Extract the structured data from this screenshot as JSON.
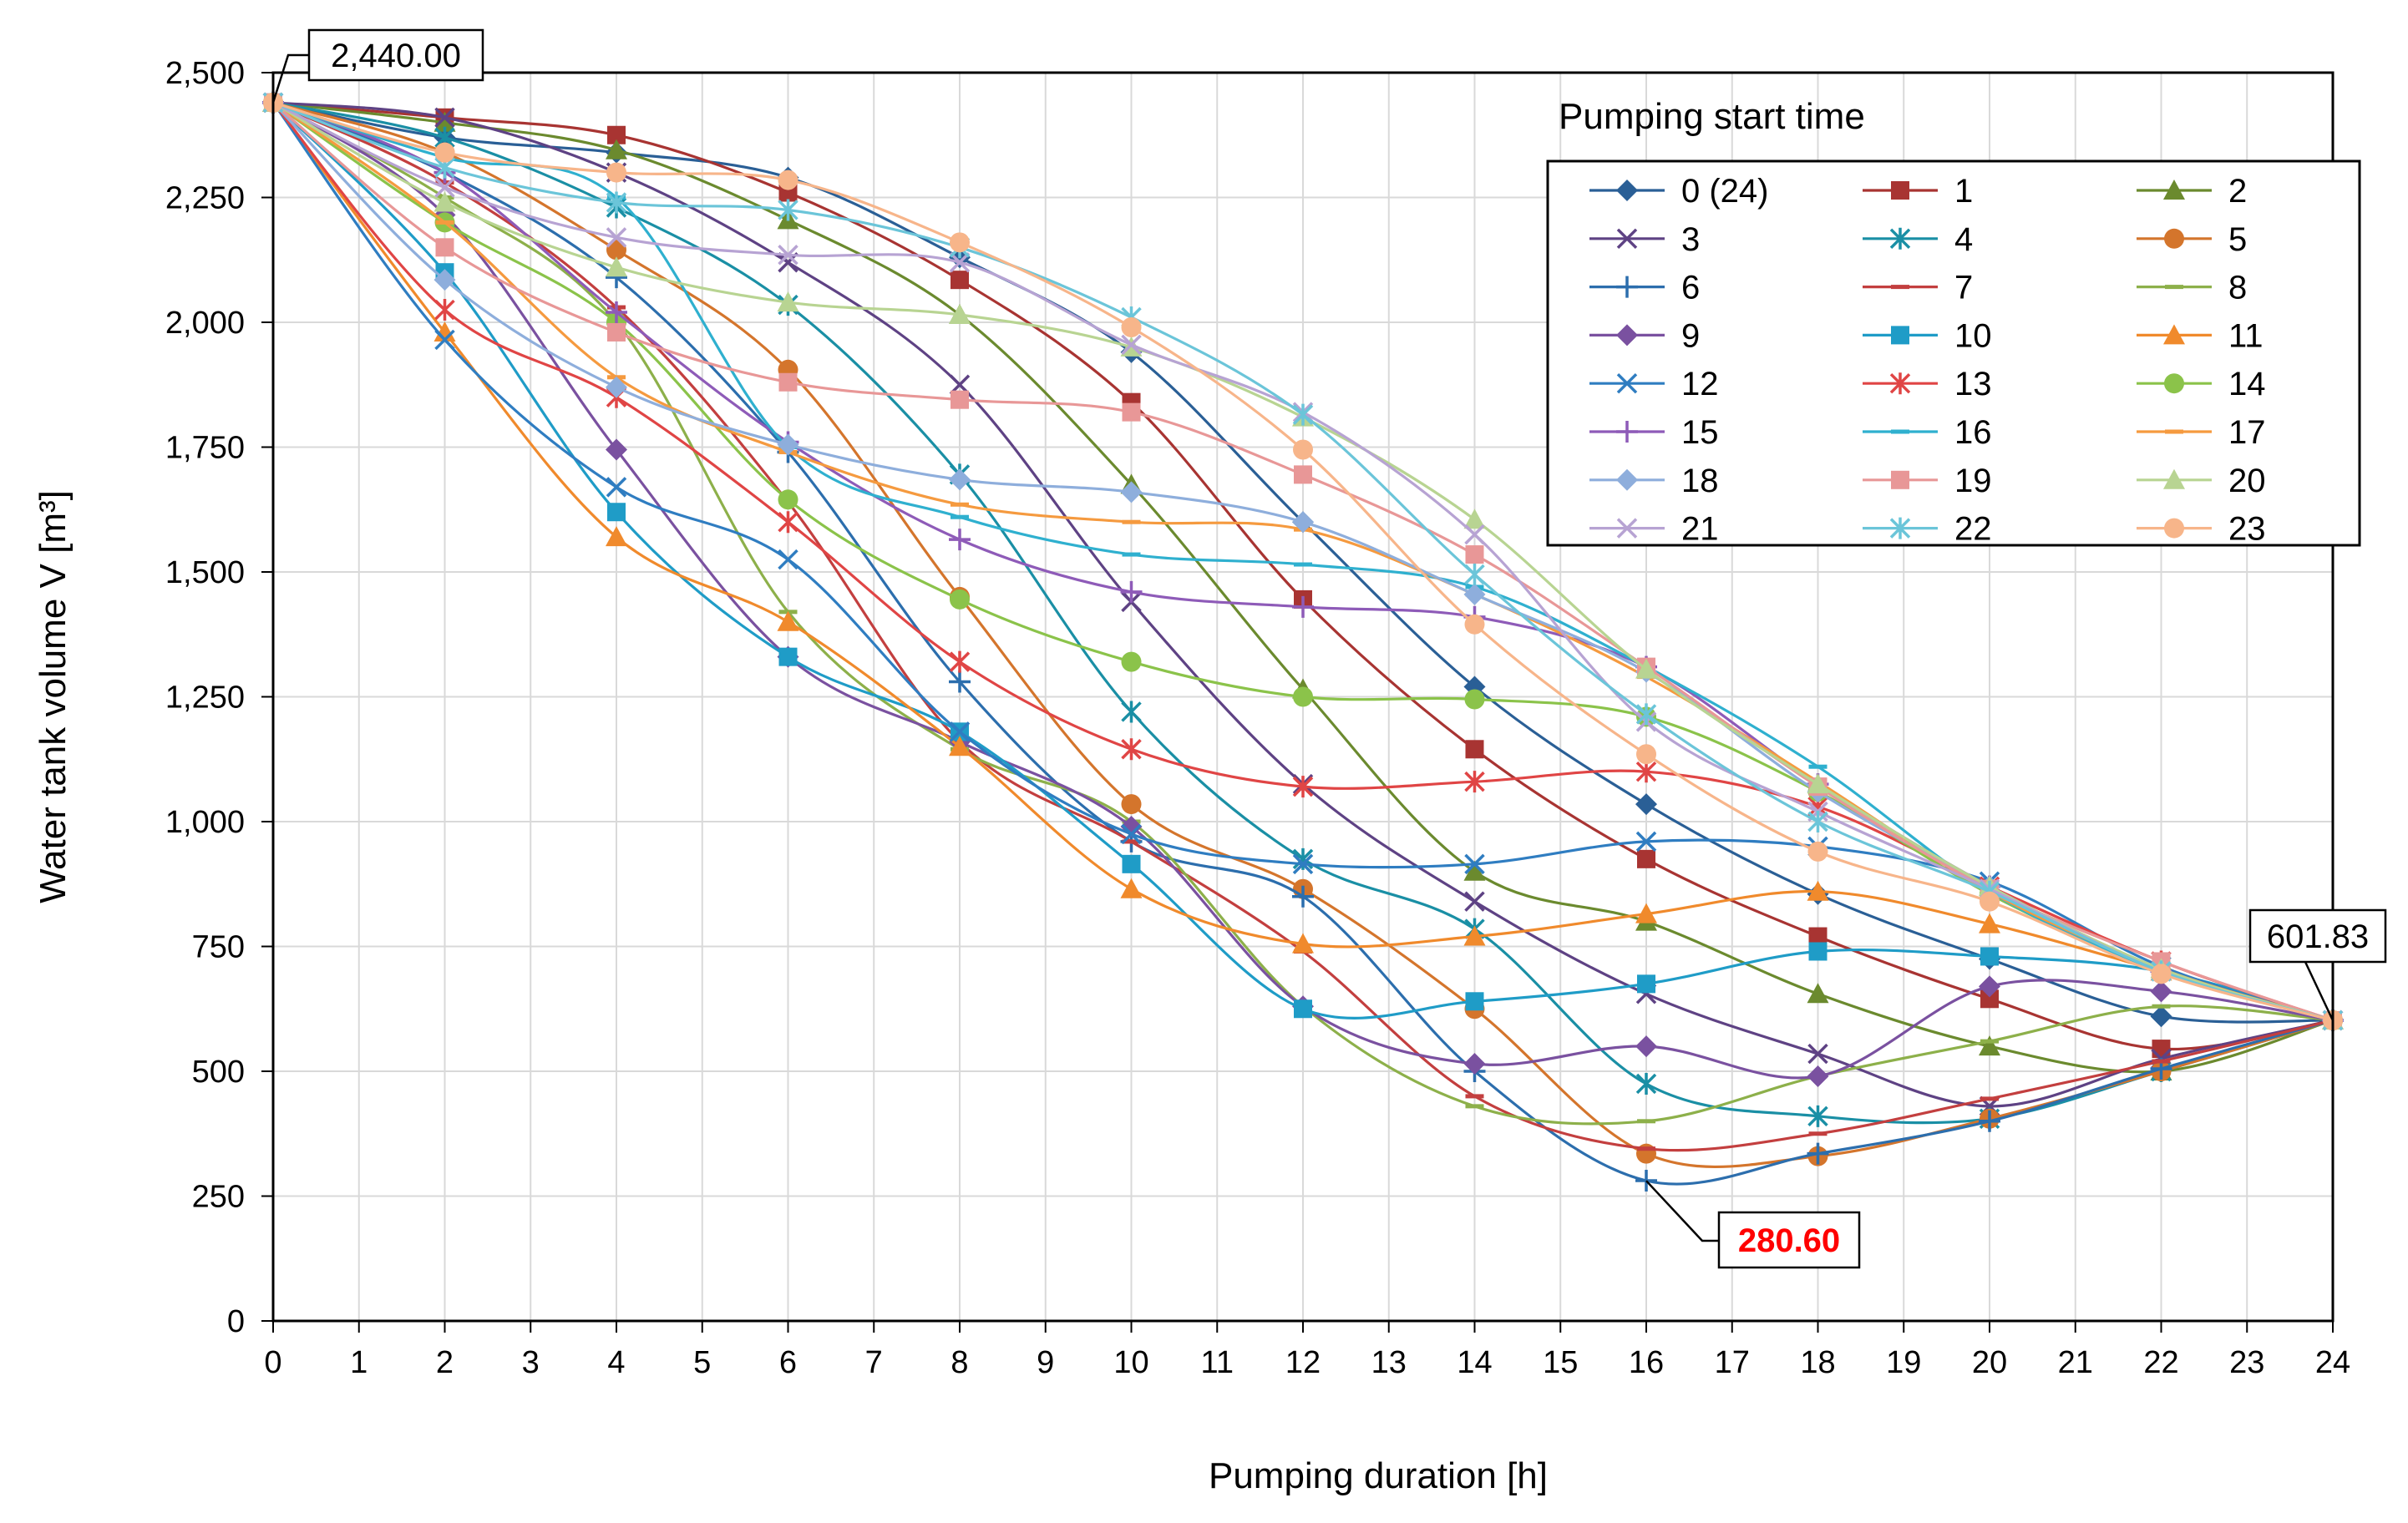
{
  "chart_data": {
    "type": "line",
    "title": "",
    "xlabel": "Pumping duration [h]",
    "ylabel": "Water tank volume  V [m³]",
    "xlim": [
      0,
      24
    ],
    "ylim": [
      0,
      2500
    ],
    "x_ticks": [
      "0",
      "1",
      "2",
      "3",
      "4",
      "5",
      "6",
      "7",
      "8",
      "9",
      "10",
      "11",
      "12",
      "13",
      "14",
      "15",
      "16",
      "17",
      "18",
      "19",
      "20",
      "21",
      "22",
      "23",
      "24"
    ],
    "y_ticks": [
      "0",
      "250",
      "500",
      "750",
      "1,000",
      "1,250",
      "1,500",
      "1,750",
      "2,000",
      "2,250",
      "2,500"
    ],
    "grid": true,
    "legend_title": "Pumping  start time",
    "legend_position": "top-right",
    "x": [
      0,
      2,
      4,
      6,
      8,
      10,
      12,
      14,
      16,
      18,
      20,
      22,
      24
    ],
    "annotations": [
      {
        "label": "2,440.00",
        "x": 0,
        "y": 2440,
        "color": "#000000"
      },
      {
        "label": "601.83",
        "x": 24,
        "y": 601.83,
        "color": "#000000"
      },
      {
        "label": "280.60",
        "x": 16,
        "y": 280.6,
        "color": "#ff0000"
      }
    ],
    "series": [
      {
        "name": "0 (24)",
        "color": "#2a5f96",
        "marker": "diamond",
        "values": [
          2440,
          2370,
          2340,
          2290,
          2130,
          1940,
          1600,
          1270,
          1035,
          855,
          725,
          610,
          602
        ]
      },
      {
        "name": "1",
        "color": "#a83432",
        "marker": "square",
        "values": [
          2440,
          2410,
          2375,
          2260,
          2085,
          1840,
          1445,
          1145,
          925,
          770,
          645,
          545,
          602
        ]
      },
      {
        "name": "2",
        "color": "#6b8a2e",
        "marker": "triangle",
        "values": [
          2440,
          2400,
          2345,
          2205,
          2015,
          1675,
          1265,
          900,
          800,
          655,
          550,
          500,
          602
        ]
      },
      {
        "name": "3",
        "color": "#5e4284",
        "marker": "x",
        "values": [
          2440,
          2410,
          2300,
          2120,
          1875,
          1440,
          1075,
          840,
          655,
          535,
          430,
          525,
          602
        ]
      },
      {
        "name": "4",
        "color": "#1a8fa5",
        "marker": "asterisk",
        "values": [
          2440,
          2370,
          2230,
          2035,
          1695,
          1220,
          925,
          785,
          475,
          410,
          405,
          500,
          602
        ]
      },
      {
        "name": "5",
        "color": "#d4752c",
        "marker": "circle",
        "values": [
          2440,
          2340,
          2145,
          1905,
          1450,
          1035,
          865,
          625,
          335,
          330,
          405,
          500,
          602
        ]
      },
      {
        "name": "6",
        "color": "#2c6ead",
        "marker": "plus",
        "values": [
          2440,
          2300,
          2090,
          1740,
          1280,
          960,
          850,
          500,
          281,
          335,
          400,
          505,
          602
        ]
      },
      {
        "name": "7",
        "color": "#c33f3f",
        "marker": "dash",
        "values": [
          2440,
          2280,
          2030,
          1640,
          1160,
          960,
          740,
          450,
          345,
          375,
          445,
          520,
          602
        ]
      },
      {
        "name": "8",
        "color": "#8db04a",
        "marker": "dash",
        "values": [
          2440,
          2250,
          2000,
          1420,
          1145,
          1000,
          630,
          430,
          400,
          490,
          560,
          630,
          602
        ]
      },
      {
        "name": "9",
        "color": "#7a51a0",
        "marker": "diamond",
        "values": [
          2440,
          2215,
          1745,
          1330,
          1160,
          990,
          630,
          515,
          550,
          490,
          670,
          660,
          602
        ]
      },
      {
        "name": "10",
        "color": "#1f9cc7",
        "marker": "square",
        "values": [
          2440,
          2100,
          1620,
          1330,
          1180,
          915,
          625,
          640,
          675,
          740,
          730,
          700,
          602
        ]
      },
      {
        "name": "11",
        "color": "#f08a2c",
        "marker": "triangle",
        "values": [
          2440,
          1980,
          1570,
          1400,
          1150,
          865,
          755,
          770,
          815,
          860,
          795,
          700,
          602
        ]
      },
      {
        "name": "12",
        "color": "#2f7dc1",
        "marker": "x",
        "values": [
          2440,
          1965,
          1670,
          1525,
          1180,
          975,
          915,
          915,
          960,
          950,
          880,
          710,
          602
        ]
      },
      {
        "name": "13",
        "color": "#e04545",
        "marker": "asterisk",
        "values": [
          2440,
          2025,
          1850,
          1600,
          1320,
          1145,
          1070,
          1080,
          1100,
          1030,
          870,
          720,
          602
        ]
      },
      {
        "name": "14",
        "color": "#8bc34a",
        "marker": "circle",
        "values": [
          2440,
          2200,
          2000,
          1645,
          1445,
          1320,
          1250,
          1245,
          1210,
          1060,
          855,
          700,
          602
        ]
      },
      {
        "name": "15",
        "color": "#8e5bb8",
        "marker": "plus",
        "values": [
          2440,
          2300,
          2020,
          1760,
          1565,
          1460,
          1430,
          1410,
          1310,
          1075,
          870,
          700,
          602
        ]
      },
      {
        "name": "16",
        "color": "#2fb0cf",
        "marker": "dash",
        "values": [
          2440,
          2330,
          2250,
          1750,
          1610,
          1535,
          1515,
          1470,
          1310,
          1110,
          860,
          700,
          602
        ]
      },
      {
        "name": "17",
        "color": "#f59a3f",
        "marker": "dash",
        "values": [
          2440,
          2200,
          1890,
          1740,
          1635,
          1600,
          1585,
          1455,
          1290,
          1080,
          860,
          705,
          602
        ]
      },
      {
        "name": "18",
        "color": "#8eaedc",
        "marker": "diamond",
        "values": [
          2440,
          2085,
          1870,
          1755,
          1685,
          1660,
          1600,
          1455,
          1300,
          1060,
          870,
          700,
          602
        ]
      },
      {
        "name": "19",
        "color": "#e89797",
        "marker": "square",
        "values": [
          2440,
          2150,
          1980,
          1880,
          1845,
          1820,
          1695,
          1535,
          1310,
          1070,
          865,
          720,
          602
        ]
      },
      {
        "name": "20",
        "color": "#b8d492",
        "marker": "triangle",
        "values": [
          2440,
          2240,
          2110,
          2040,
          2015,
          1950,
          1810,
          1605,
          1305,
          1075,
          870,
          705,
          602
        ]
      },
      {
        "name": "21",
        "color": "#b7a3d3",
        "marker": "x",
        "values": [
          2440,
          2270,
          2170,
          2135,
          2120,
          1955,
          1820,
          1575,
          1200,
          1020,
          865,
          700,
          602
        ]
      },
      {
        "name": "22",
        "color": "#6bc5d9",
        "marker": "asterisk",
        "values": [
          2440,
          2310,
          2240,
          2225,
          2150,
          2010,
          1815,
          1495,
          1215,
          1000,
          860,
          700,
          602
        ]
      },
      {
        "name": "23",
        "color": "#f7b58a",
        "marker": "circle",
        "values": [
          2440,
          2340,
          2300,
          2285,
          2160,
          1990,
          1745,
          1395,
          1135,
          940,
          840,
          695,
          602
        ]
      }
    ]
  }
}
